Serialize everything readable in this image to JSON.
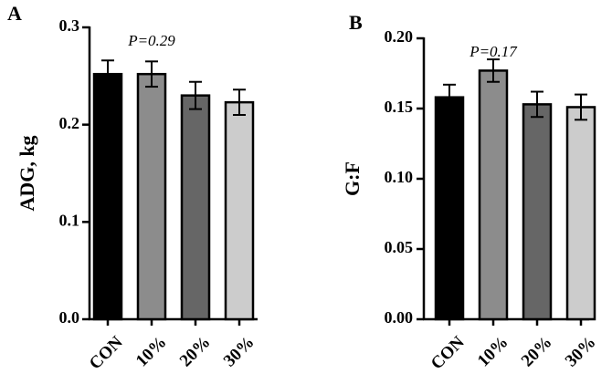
{
  "chart_data": [
    {
      "type": "bar",
      "panel_label": "A",
      "categories": [
        "CON",
        "10%",
        "20%",
        "30%"
      ],
      "values": [
        0.252,
        0.252,
        0.23,
        0.223
      ],
      "errors": [
        0.014,
        0.013,
        0.014,
        0.013
      ],
      "colors": [
        "#000000",
        "#8c8c8c",
        "#666666",
        "#cccccc"
      ],
      "ylabel": "ADG, kg",
      "ylim": [
        0,
        0.3
      ],
      "yticks": [
        0.0,
        0.1,
        0.2,
        0.3
      ],
      "ytick_labels": [
        "0.0",
        "0.1",
        "0.2",
        "0.3"
      ],
      "annotation": "P=0.29"
    },
    {
      "type": "bar",
      "panel_label": "B",
      "categories": [
        "CON",
        "10%",
        "20%",
        "30%"
      ],
      "values": [
        0.158,
        0.177,
        0.153,
        0.151
      ],
      "errors": [
        0.009,
        0.008,
        0.009,
        0.009
      ],
      "colors": [
        "#000000",
        "#8c8c8c",
        "#666666",
        "#cccccc"
      ],
      "ylabel": "G:F",
      "ylim": [
        0,
        0.2
      ],
      "yticks": [
        0.0,
        0.05,
        0.1,
        0.15,
        0.2
      ],
      "ytick_labels": [
        "0.00",
        "0.05",
        "0.10",
        "0.15",
        "0.20"
      ],
      "annotation": "P=0.17"
    }
  ]
}
